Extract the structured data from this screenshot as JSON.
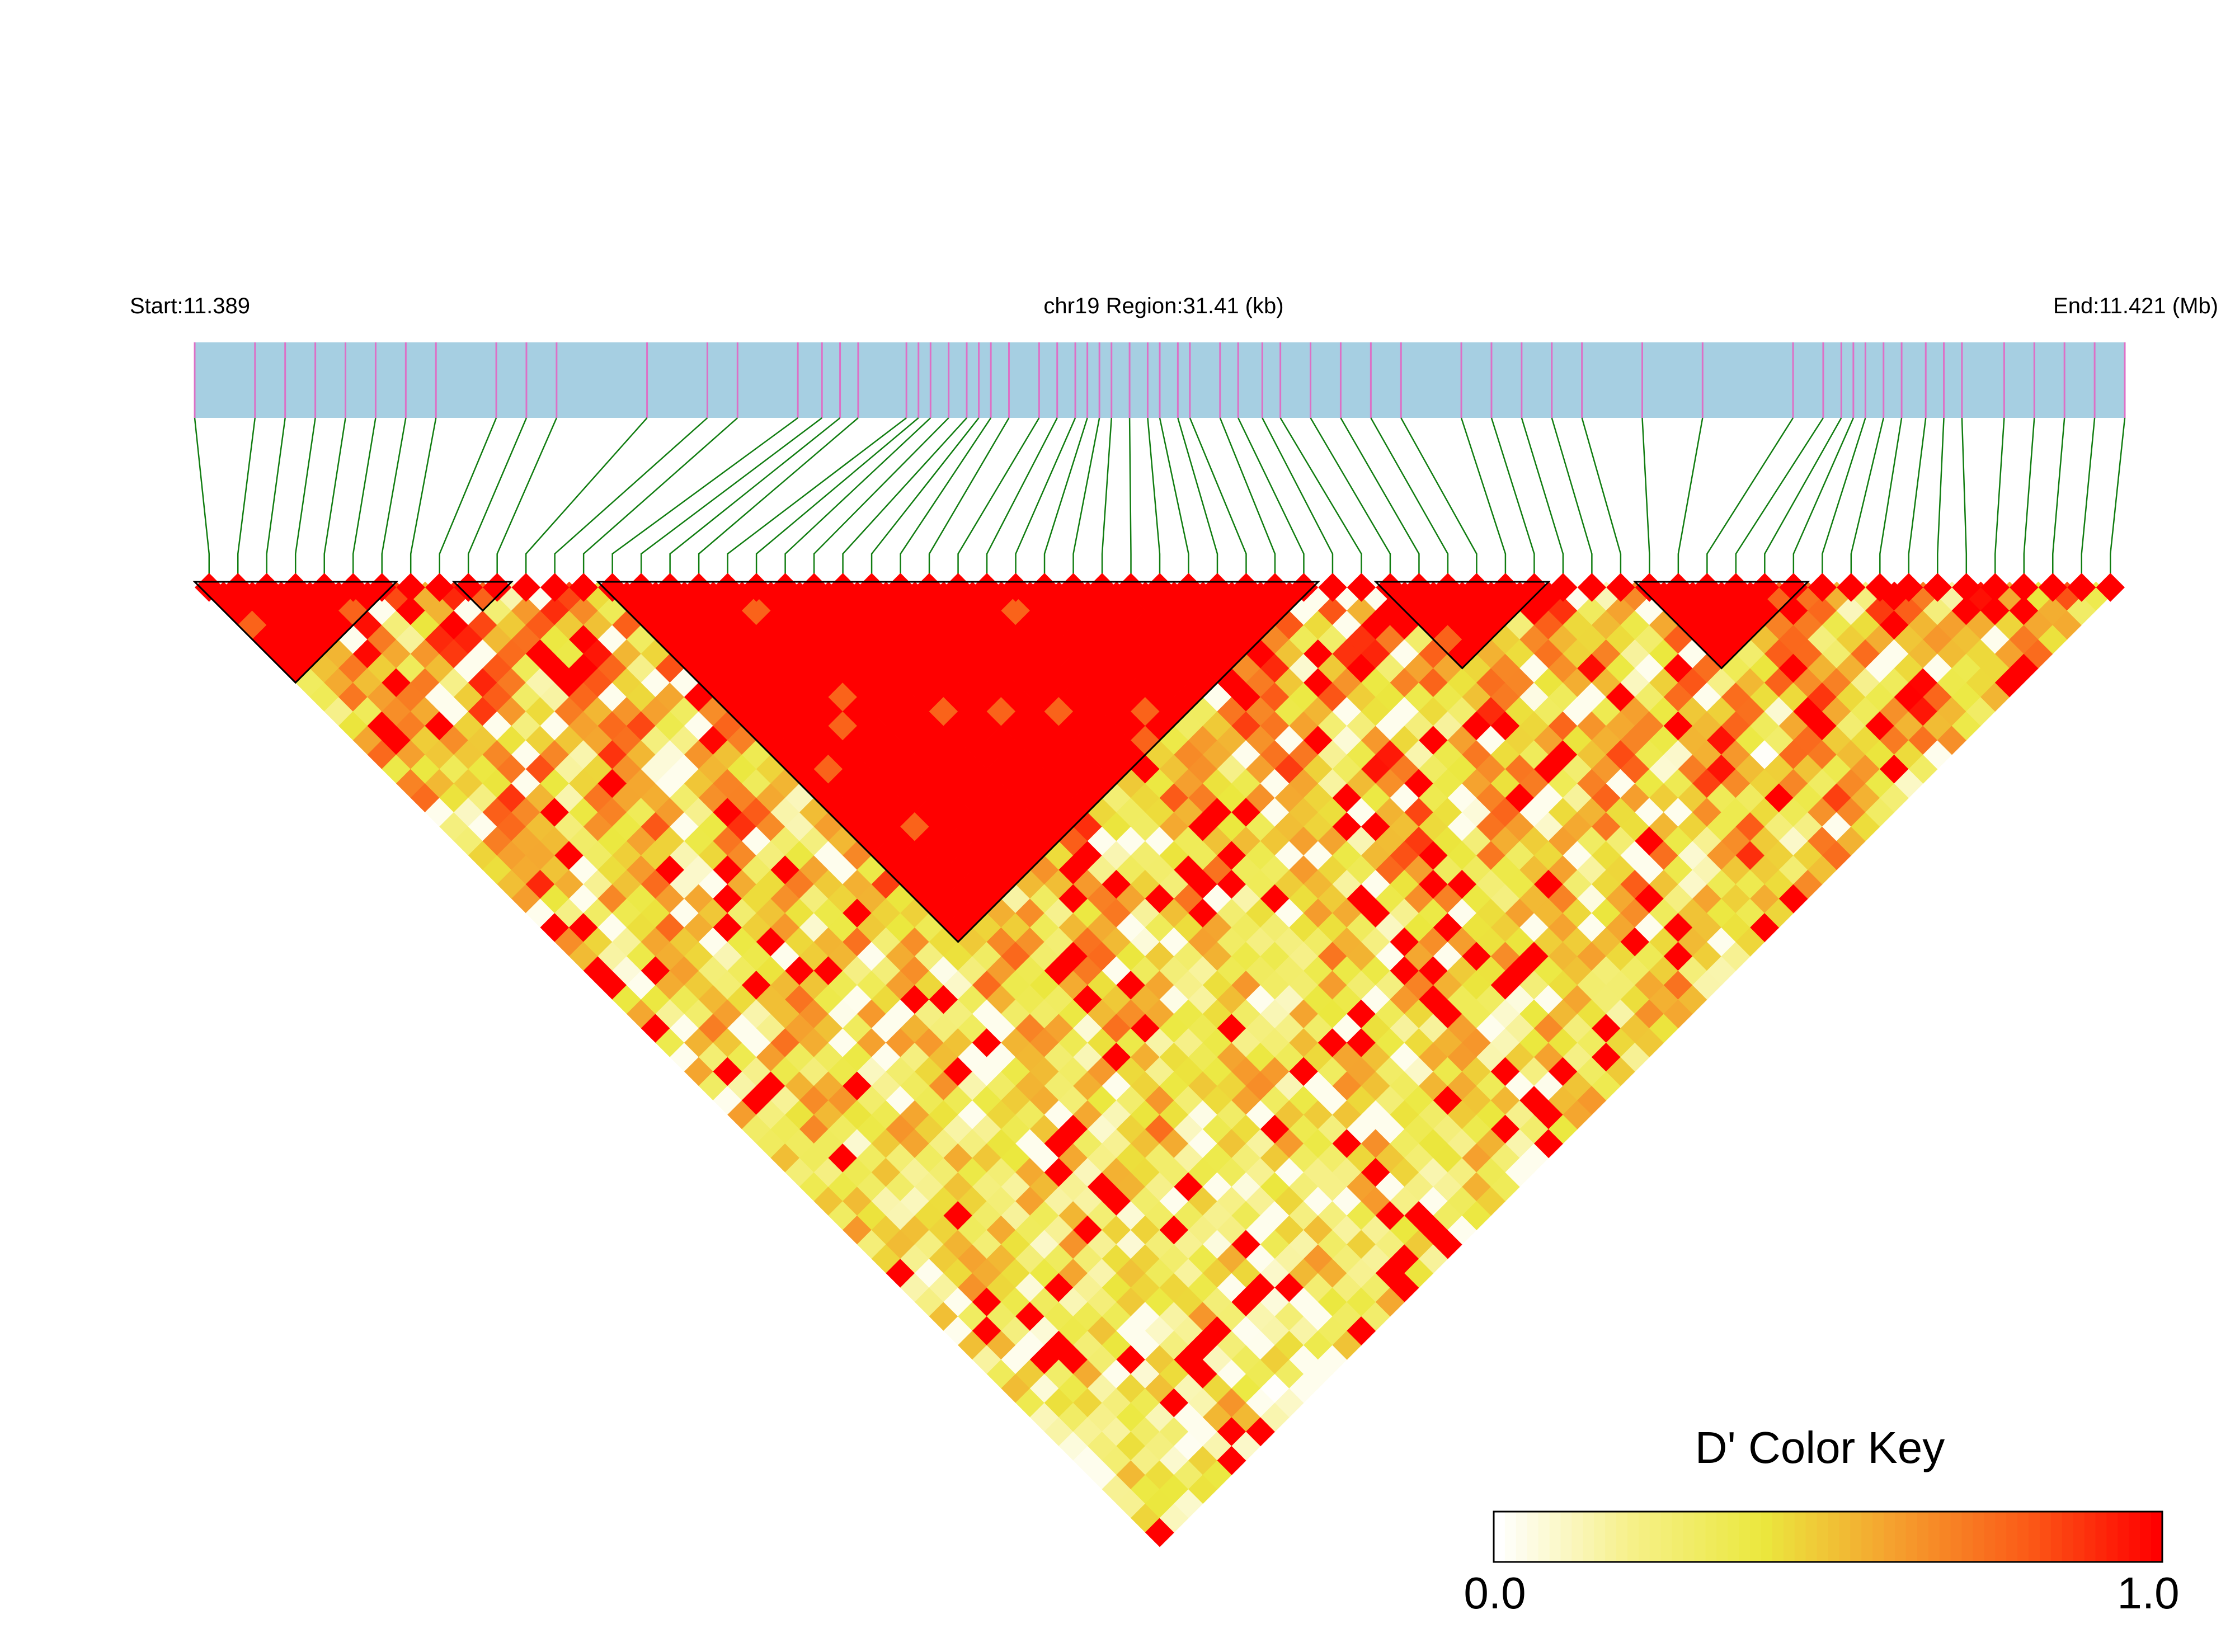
{
  "chart_data": {
    "type": "heatmap",
    "subtype": "linkage-disequilibrium triangle",
    "region": {
      "start_label": "Start:11.389",
      "center_label": "chr19 Region:31.41 (kb)",
      "end_label": "End:11.421 (Mb)",
      "start_mb": 11.389,
      "end_mb": 11.421,
      "length_kb": 31.41
    },
    "snp_count": 67,
    "snp_positions_mb": [
      11.389,
      11.39,
      11.3905,
      11.391,
      11.3915,
      11.392,
      11.3925,
      11.393,
      11.394,
      11.3945,
      11.395,
      11.3965,
      11.3975,
      11.398,
      11.399,
      11.3994,
      11.3997,
      11.4,
      11.4008,
      11.401,
      11.4012,
      11.4015,
      11.4018,
      11.402,
      11.4022,
      11.4025,
      11.403,
      11.4033,
      11.4036,
      11.4038,
      11.404,
      11.4042,
      11.4045,
      11.4048,
      11.405,
      11.4053,
      11.4055,
      11.406,
      11.4063,
      11.4067,
      11.407,
      11.4075,
      11.408,
      11.4085,
      11.409,
      11.41,
      11.4105,
      11.411,
      11.4115,
      11.412,
      11.413,
      11.414,
      11.4155,
      11.416,
      11.4163,
      11.4165,
      11.4167,
      11.417,
      11.4173,
      11.4177,
      11.418,
      11.4183,
      11.419,
      11.4195,
      11.42,
      11.4205,
      11.421
    ],
    "haplotype_blocks": [
      [
        0,
        6
      ],
      [
        9,
        10
      ],
      [
        14,
        38
      ],
      [
        41,
        46
      ],
      [
        50,
        55
      ]
    ],
    "color_key": {
      "title": "D' Color Key",
      "min_label": "0.0",
      "max_label": "1.0",
      "min": 0.0,
      "max": 1.0,
      "stops": [
        "#ffffff",
        "#f6f089",
        "#ebe83e",
        "#f5a02e",
        "#fb5c18",
        "#ff0000"
      ]
    },
    "colors": {
      "gene_track": "#a6cfe2",
      "snp_tick": "#dd70c6",
      "connector": "#117d11",
      "block_outline": "#000000"
    }
  }
}
